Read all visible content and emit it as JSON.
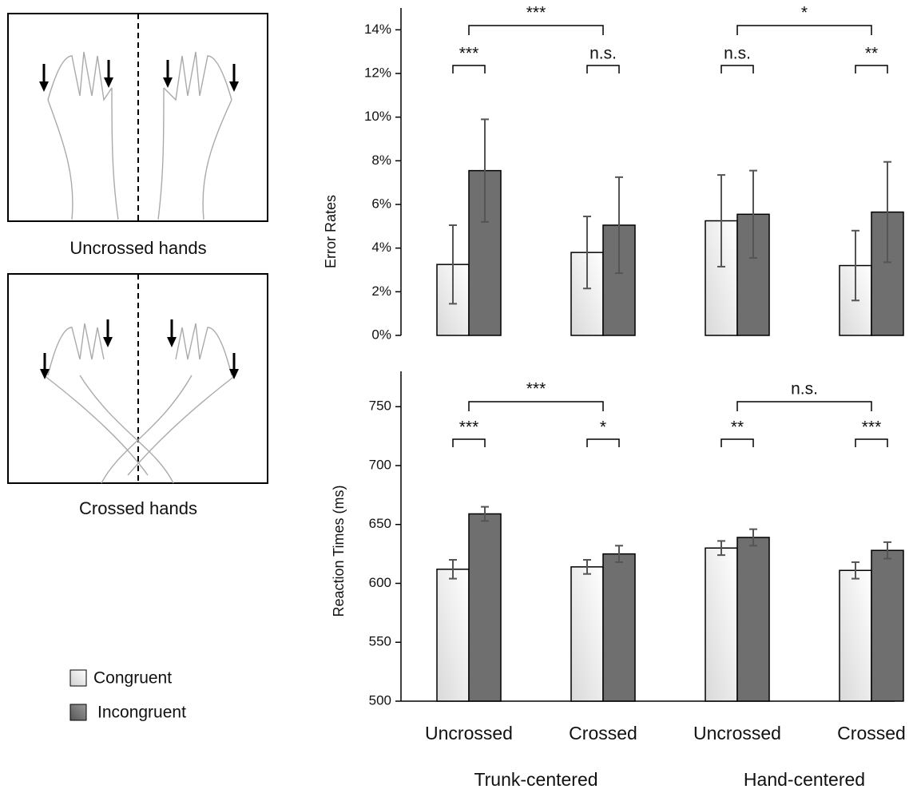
{
  "panels": [
    {
      "caption": "Uncrossed hands"
    },
    {
      "caption": "Crossed hands"
    }
  ],
  "legend": [
    "Congruent",
    "Incongruent"
  ],
  "chart_data": [
    {
      "type": "bar",
      "y_label": "Error Rates",
      "ylim": [
        0,
        15
      ],
      "yticks": [
        {
          "value": 0,
          "label": "0%"
        },
        {
          "value": 2,
          "label": "2%"
        },
        {
          "value": 4,
          "label": "4%"
        },
        {
          "value": 6,
          "label": "6%"
        },
        {
          "value": 8,
          "label": "8%"
        },
        {
          "value": 10,
          "label": "10%"
        },
        {
          "value": 12,
          "label": "12%"
        },
        {
          "value": 14,
          "label": "14%"
        }
      ],
      "series": [
        {
          "name": "Congruent",
          "color": "#d9d9d9",
          "values": [
            3.25,
            3.8,
            5.25,
            3.2
          ],
          "errors": [
            1.8,
            1.65,
            2.1,
            1.6
          ]
        },
        {
          "name": "Incongruent",
          "color": "#6f6f6f",
          "values": [
            7.55,
            5.05,
            5.55,
            5.65
          ],
          "errors": [
            2.35,
            2.2,
            2.0,
            2.3
          ]
        }
      ],
      "within_annotations": [
        "***",
        "n.s.",
        "n.s.",
        "**"
      ],
      "between_annotations": [
        "***",
        "*"
      ]
    },
    {
      "type": "bar",
      "y_label": "Reaction Times (ms)",
      "ylim": [
        500,
        780
      ],
      "yticks": [
        500,
        550,
        600,
        650,
        700,
        750
      ],
      "categories": [
        "Uncrossed",
        "Crossed",
        "Uncrossed",
        "Crossed"
      ],
      "groups": [
        "Trunk-centered",
        "Hand-centered"
      ],
      "series": [
        {
          "name": "Congruent",
          "color": "#d9d9d9",
          "values": [
            612,
            614,
            630,
            611
          ],
          "errors": [
            8,
            6,
            6,
            7
          ]
        },
        {
          "name": "Incongruent",
          "color": "#6f6f6f",
          "values": [
            659,
            625,
            639,
            628
          ],
          "errors": [
            6,
            7,
            7,
            7
          ]
        }
      ],
      "within_annotations": [
        "***",
        "*",
        "**",
        "***"
      ],
      "between_annotations": [
        "***",
        "n.s."
      ]
    }
  ]
}
